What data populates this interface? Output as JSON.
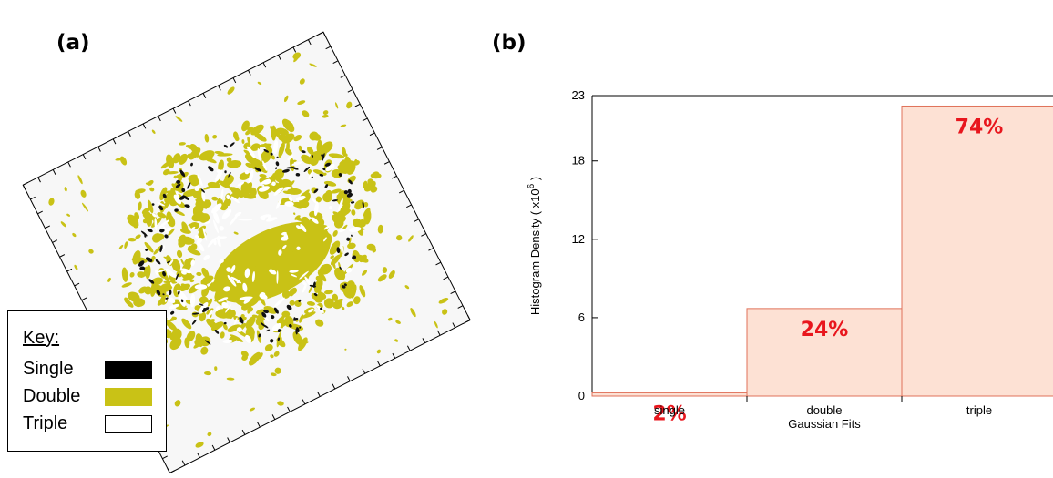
{
  "panels": {
    "a_label": "(a)",
    "b_label": "(b)"
  },
  "key": {
    "title": "Key:",
    "items": [
      {
        "label": "Single",
        "color": "#000000"
      },
      {
        "label": "Double",
        "color": "#c9c216"
      },
      {
        "label": "Triple",
        "color": "#ffffff"
      }
    ]
  },
  "map_colors": {
    "background": "#f7f7f7",
    "single": "#111111",
    "double": "#c9c216"
  },
  "chart_data": {
    "type": "bar",
    "categories": [
      "single",
      "double",
      "triple"
    ],
    "values": [
      0.25,
      6.7,
      22.2
    ],
    "bar_labels": [
      "2%",
      "24%",
      "74%"
    ],
    "xlabel": "Gaussian Fits",
    "ylabel": "Histogram Density ( x10^6 )",
    "ylim": [
      0,
      23
    ],
    "yticks": [
      0,
      6,
      12,
      18,
      23
    ],
    "bar_fill": "#fde1d4",
    "bar_stroke": "#e0715a",
    "label_color": "#e8161d"
  }
}
